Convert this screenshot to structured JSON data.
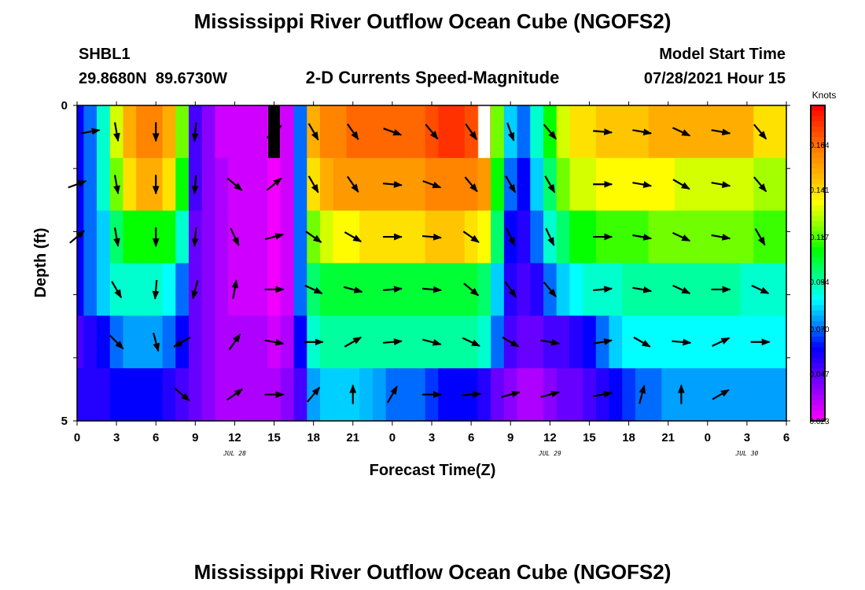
{
  "header": {
    "title": "Mississippi River Outflow Ocean Cube (NGOFS2)",
    "station_id": "SHBL1",
    "station_coords": "29.8680N  89.6730W",
    "subtitle": "2-D Currents Speed-Magnitude",
    "model_start_label": "Model Start Time",
    "model_start_value": "07/28/2021 Hour 15"
  },
  "footer": {
    "title": "Mississippi River Outflow Ocean Cube (NGOFS2)"
  },
  "chart_data": {
    "type": "heatmap",
    "title": "2-D Currents Speed-Magnitude",
    "xlabel": "Forecast Time(Z)",
    "ylabel": "Depth (ft)",
    "x_tick_labels": [
      "0",
      "3",
      "6",
      "9",
      "12",
      "15",
      "18",
      "21",
      "0",
      "3",
      "6",
      "9",
      "12",
      "15",
      "18",
      "21",
      "0",
      "3",
      "6"
    ],
    "date_labels": [
      {
        "label": "JUL 28",
        "tick": 4
      },
      {
        "label": "JUL 29",
        "tick": 12
      },
      {
        "label": "JUL 30",
        "tick": 17
      }
    ],
    "ylim": [
      0,
      5
    ],
    "y_tick_labels": [
      "0",
      "5"
    ],
    "colorbar": {
      "unit": "Knots",
      "min": 0.023,
      "max": 0.184,
      "tick_labels": [
        "0.164",
        "0.141",
        "0.117",
        "0.094",
        "0.070",
        "0.047",
        "0.023"
      ],
      "colors": [
        "#ff00ff",
        "#aa00ff",
        "#5500ff",
        "#0000ff",
        "#0088ff",
        "#00ffff",
        "#00ff88",
        "#00ff00",
        "#88ff00",
        "#ffff00",
        "#ffbb00",
        "#ff8800",
        "#ff4400",
        "#ff0000"
      ]
    },
    "x_hours": [
      0,
      1,
      2,
      3,
      4,
      5,
      6,
      7,
      8,
      9,
      10,
      11,
      12,
      13,
      14,
      15,
      16,
      17,
      18,
      19,
      20,
      21,
      22,
      23,
      24,
      25,
      26,
      27,
      28,
      29,
      30,
      31,
      32,
      33,
      34,
      35,
      36,
      37,
      38,
      39,
      40,
      41,
      42,
      43,
      44,
      45,
      46,
      47,
      48,
      49,
      50,
      51,
      52,
      53,
      54
    ],
    "depth_layers": [
      "0-0.83",
      "0.83-1.67",
      "1.67-2.5",
      "2.5-3.33",
      "3.33-4.17",
      "4.17-5"
    ],
    "speed": [
      [
        0.06,
        0.07,
        0.09,
        0.13,
        0.15,
        0.16,
        0.16,
        0.15,
        0.12,
        0.05,
        0.04,
        0.03,
        0.03,
        0.03,
        0.03,
        0.02,
        0.03,
        0.07,
        0.15,
        0.16,
        0.16,
        0.165,
        0.165,
        0.165,
        0.165,
        0.165,
        0.165,
        0.17,
        0.175,
        0.175,
        0.17,
        0.16,
        0.12,
        0.08,
        0.07,
        0.09,
        0.11,
        0.13,
        0.14,
        0.14,
        0.145,
        0.145,
        0.145,
        0.145,
        0.15,
        0.15,
        0.15,
        0.15,
        0.15,
        0.15,
        0.15,
        0.15,
        0.14,
        0.14,
        0.14
      ],
      [
        0.06,
        0.07,
        0.09,
        0.12,
        0.14,
        0.15,
        0.15,
        0.14,
        0.11,
        0.05,
        0.04,
        0.035,
        0.03,
        0.03,
        0.03,
        0.025,
        0.03,
        0.07,
        0.14,
        0.15,
        0.155,
        0.155,
        0.155,
        0.155,
        0.155,
        0.155,
        0.155,
        0.16,
        0.16,
        0.16,
        0.16,
        0.155,
        0.11,
        0.07,
        0.06,
        0.08,
        0.1,
        0.12,
        0.13,
        0.13,
        0.135,
        0.135,
        0.135,
        0.135,
        0.135,
        0.135,
        0.13,
        0.13,
        0.13,
        0.13,
        0.13,
        0.13,
        0.125,
        0.125,
        0.125
      ],
      [
        0.06,
        0.07,
        0.08,
        0.1,
        0.11,
        0.11,
        0.11,
        0.11,
        0.09,
        0.045,
        0.04,
        0.035,
        0.03,
        0.03,
        0.03,
        0.025,
        0.03,
        0.07,
        0.12,
        0.13,
        0.135,
        0.135,
        0.14,
        0.14,
        0.14,
        0.14,
        0.14,
        0.145,
        0.145,
        0.145,
        0.14,
        0.135,
        0.1,
        0.06,
        0.055,
        0.07,
        0.09,
        0.1,
        0.11,
        0.11,
        0.115,
        0.115,
        0.115,
        0.115,
        0.12,
        0.12,
        0.12,
        0.12,
        0.12,
        0.12,
        0.12,
        0.12,
        0.115,
        0.115,
        0.115
      ],
      [
        0.06,
        0.07,
        0.08,
        0.09,
        0.09,
        0.09,
        0.09,
        0.085,
        0.07,
        0.045,
        0.04,
        0.035,
        0.03,
        0.03,
        0.03,
        0.025,
        0.03,
        0.07,
        0.1,
        0.105,
        0.105,
        0.105,
        0.105,
        0.105,
        0.105,
        0.105,
        0.105,
        0.105,
        0.105,
        0.105,
        0.105,
        0.1,
        0.08,
        0.055,
        0.05,
        0.055,
        0.07,
        0.08,
        0.085,
        0.09,
        0.09,
        0.09,
        0.095,
        0.095,
        0.095,
        0.095,
        0.095,
        0.095,
        0.095,
        0.095,
        0.095,
        0.09,
        0.09,
        0.09,
        0.09
      ],
      [
        0.05,
        0.055,
        0.06,
        0.07,
        0.075,
        0.075,
        0.075,
        0.07,
        0.06,
        0.045,
        0.04,
        0.035,
        0.035,
        0.035,
        0.035,
        0.03,
        0.035,
        0.06,
        0.09,
        0.095,
        0.095,
        0.095,
        0.095,
        0.095,
        0.095,
        0.095,
        0.095,
        0.095,
        0.095,
        0.095,
        0.095,
        0.09,
        0.07,
        0.05,
        0.045,
        0.045,
        0.05,
        0.05,
        0.055,
        0.06,
        0.07,
        0.08,
        0.085,
        0.085,
        0.085,
        0.085,
        0.085,
        0.085,
        0.085,
        0.085,
        0.085,
        0.085,
        0.085,
        0.085,
        0.085
      ],
      [
        0.055,
        0.055,
        0.055,
        0.06,
        0.06,
        0.06,
        0.06,
        0.055,
        0.05,
        0.045,
        0.04,
        0.035,
        0.035,
        0.035,
        0.035,
        0.035,
        0.04,
        0.05,
        0.075,
        0.08,
        0.08,
        0.08,
        0.078,
        0.075,
        0.07,
        0.07,
        0.07,
        0.065,
        0.06,
        0.06,
        0.06,
        0.055,
        0.045,
        0.04,
        0.035,
        0.035,
        0.04,
        0.045,
        0.045,
        0.05,
        0.055,
        0.06,
        0.065,
        0.07,
        0.07,
        0.075,
        0.075,
        0.075,
        0.075,
        0.075,
        0.075,
        0.075,
        0.075,
        0.075,
        0.075
      ]
    ],
    "missing": [
      {
        "hour": 15,
        "layer": 0,
        "fill": "black"
      },
      {
        "hour": 31,
        "layer": 0,
        "fill": "white"
      }
    ],
    "vectors": [
      [
        [
          1,
          80
        ],
        [
          3,
          170
        ],
        [
          6,
          180
        ],
        [
          9,
          185
        ],
        [
          15,
          50
        ],
        [
          18,
          150
        ],
        [
          21,
          145
        ],
        [
          24,
          110
        ],
        [
          27,
          140
        ],
        [
          30,
          145
        ],
        [
          33,
          160
        ],
        [
          36,
          140
        ],
        [
          40,
          95
        ],
        [
          43,
          100
        ],
        [
          46,
          115
        ],
        [
          49,
          100
        ],
        [
          52,
          140
        ]
      ],
      [
        [
          0,
          70
        ],
        [
          3,
          170
        ],
        [
          6,
          180
        ],
        [
          9,
          185
        ],
        [
          12,
          130
        ],
        [
          15,
          50
        ],
        [
          18,
          150
        ],
        [
          21,
          145
        ],
        [
          24,
          95
        ],
        [
          27,
          110
        ],
        [
          30,
          140
        ],
        [
          33,
          150
        ],
        [
          36,
          150
        ],
        [
          40,
          90
        ],
        [
          43,
          100
        ],
        [
          46,
          120
        ],
        [
          49,
          100
        ],
        [
          52,
          140
        ]
      ],
      [
        [
          0,
          50
        ],
        [
          3,
          170
        ],
        [
          6,
          180
        ],
        [
          9,
          185
        ],
        [
          12,
          155
        ],
        [
          15,
          75
        ],
        [
          18,
          125
        ],
        [
          21,
          120
        ],
        [
          24,
          90
        ],
        [
          27,
          95
        ],
        [
          30,
          125
        ],
        [
          33,
          155
        ],
        [
          36,
          155
        ],
        [
          40,
          90
        ],
        [
          43,
          100
        ],
        [
          46,
          115
        ],
        [
          49,
          100
        ],
        [
          52,
          150
        ]
      ],
      [
        [
          3,
          150
        ],
        [
          6,
          185
        ],
        [
          9,
          195
        ],
        [
          12,
          10
        ],
        [
          15,
          90
        ],
        [
          18,
          115
        ],
        [
          21,
          105
        ],
        [
          24,
          85
        ],
        [
          27,
          95
        ],
        [
          30,
          130
        ],
        [
          33,
          145
        ],
        [
          36,
          140
        ],
        [
          40,
          85
        ],
        [
          43,
          100
        ],
        [
          46,
          115
        ],
        [
          49,
          90
        ],
        [
          52,
          115
        ]
      ],
      [
        [
          3,
          135
        ],
        [
          6,
          165
        ],
        [
          8,
          240
        ],
        [
          12,
          35
        ],
        [
          15,
          100
        ],
        [
          18,
          90
        ],
        [
          21,
          60
        ],
        [
          24,
          85
        ],
        [
          27,
          105
        ],
        [
          30,
          115
        ],
        [
          33,
          120
        ],
        [
          36,
          100
        ],
        [
          40,
          80
        ],
        [
          43,
          120
        ],
        [
          46,
          95
        ],
        [
          49,
          65
        ],
        [
          52,
          90
        ]
      ],
      [
        [
          8,
          130
        ],
        [
          12,
          55
        ],
        [
          15,
          90
        ],
        [
          18,
          40
        ],
        [
          21,
          0
        ],
        [
          24,
          30
        ],
        [
          27,
          90
        ],
        [
          30,
          85
        ],
        [
          33,
          75
        ],
        [
          36,
          75
        ],
        [
          40,
          80
        ],
        [
          43,
          15
        ],
        [
          46,
          0
        ],
        [
          49,
          60
        ]
      ]
    ]
  }
}
